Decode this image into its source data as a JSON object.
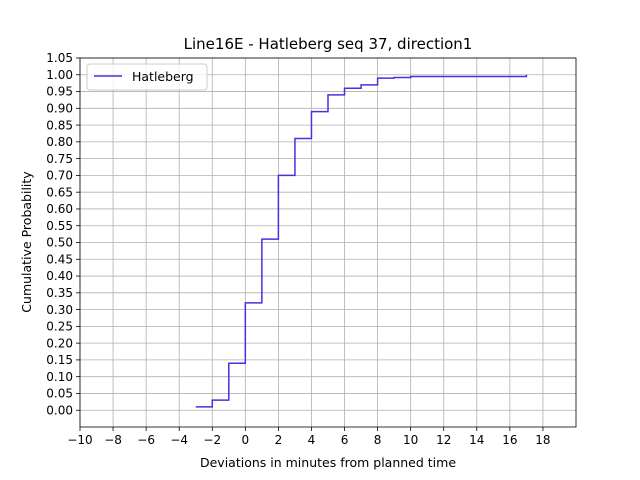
{
  "chart_data": {
    "type": "line",
    "title": "Line16E - Hatleberg seq 37, direction1",
    "xlabel": "Deviations in minutes from planned time",
    "ylabel": "Cumulative Probability",
    "xlim": [
      -10,
      20
    ],
    "ylim": [
      -0.05,
      1.05
    ],
    "xticks": [
      -10,
      -8,
      -6,
      -4,
      -2,
      0,
      2,
      4,
      6,
      8,
      10,
      12,
      14,
      16,
      18
    ],
    "xtick_labels": [
      "−10",
      "−8",
      "−6",
      "−4",
      "−2",
      "0",
      "2",
      "4",
      "6",
      "8",
      "10",
      "12",
      "14",
      "16",
      "18"
    ],
    "yticks": [
      0.0,
      0.05,
      0.1,
      0.15,
      0.2,
      0.25,
      0.3,
      0.35,
      0.4,
      0.45,
      0.5,
      0.55,
      0.6,
      0.65,
      0.7,
      0.75,
      0.8,
      0.85,
      0.9,
      0.95,
      1.0,
      1.05
    ],
    "ytick_labels": [
      "0.00",
      "0.05",
      "0.10",
      "0.15",
      "0.20",
      "0.25",
      "0.30",
      "0.35",
      "0.40",
      "0.45",
      "0.50",
      "0.55",
      "0.60",
      "0.65",
      "0.70",
      "0.75",
      "0.80",
      "0.85",
      "0.90",
      "0.95",
      "1.00",
      "1.05"
    ],
    "grid": true,
    "legend_position": "top-left",
    "series": [
      {
        "name": "Hatleberg",
        "color": "#4b2fe0",
        "step": "post",
        "x": [
          -3,
          -2,
          -1,
          0,
          1,
          2,
          3,
          4,
          5,
          6,
          7,
          8,
          9,
          10,
          11,
          12,
          13,
          14,
          15,
          16,
          17
        ],
        "y": [
          0.01,
          0.03,
          0.14,
          0.32,
          0.51,
          0.7,
          0.81,
          0.89,
          0.94,
          0.96,
          0.97,
          0.99,
          0.992,
          0.995,
          0.995,
          0.995,
          0.995,
          0.995,
          0.995,
          0.995,
          1.0
        ]
      }
    ]
  }
}
